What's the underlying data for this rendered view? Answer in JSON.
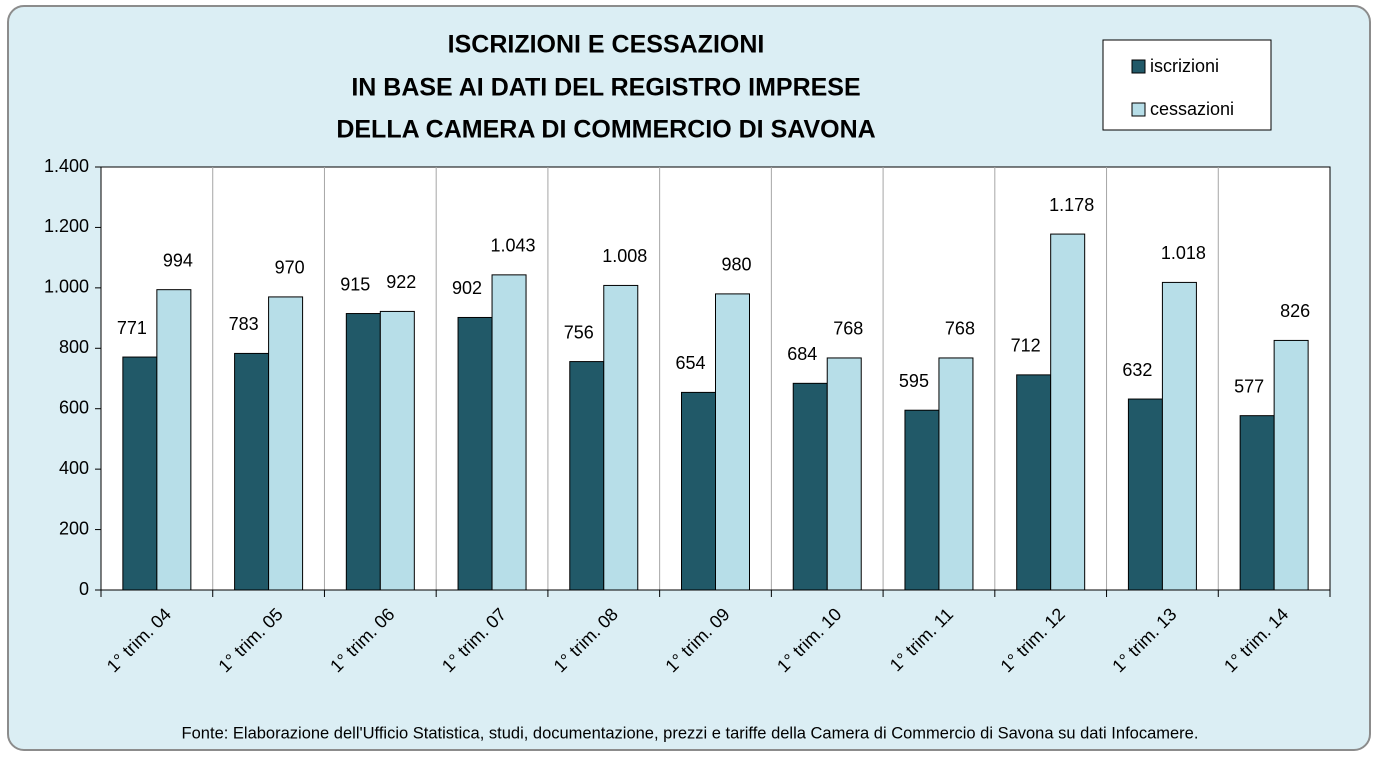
{
  "chart_data": {
    "type": "bar",
    "title": [
      "ISCRIZIONI E CESSAZIONI",
      "IN BASE AI DATI DEL REGISTRO IMPRESE",
      "DELLA CAMERA DI COMMERCIO DI SAVONA"
    ],
    "categories": [
      "1° trim. 04",
      "1° trim. 05",
      "1° trim. 06",
      "1° trim. 07",
      "1° trim. 08",
      "1° trim. 09",
      "1° trim. 10",
      "1° trim. 11",
      "1° trim. 12",
      "1° trim. 13",
      "1° trim. 14"
    ],
    "series": [
      {
        "name": "iscrizioni",
        "color": "#215968",
        "values": [
          771,
          783,
          915,
          902,
          756,
          654,
          684,
          595,
          712,
          632,
          577
        ]
      },
      {
        "name": "cessazioni",
        "color": "#b7dee8",
        "values": [
          994,
          970,
          922,
          1043,
          1008,
          980,
          768,
          768,
          1178,
          1018,
          826
        ],
        "value_labels": [
          "994",
          "970",
          "922",
          "1.043",
          "1.008",
          "980",
          "768",
          "768",
          "1.178",
          "1.018",
          "826"
        ]
      }
    ],
    "ylim": [
      0,
      1400
    ],
    "yticks": [
      0,
      200,
      400,
      600,
      800,
      {
        "value": 1000,
        "label": "1.000"
      },
      {
        "value": 1200,
        "label": "1.200"
      },
      {
        "value": 1400,
        "label": "1.400"
      }
    ],
    "legend": "top-right",
    "note": "Fonte: Elaborazione dell'Ufficio Statistica, studi, documentazione, prezzi e tariffe della Camera di Commercio di Savona su dati Infocamere."
  }
}
